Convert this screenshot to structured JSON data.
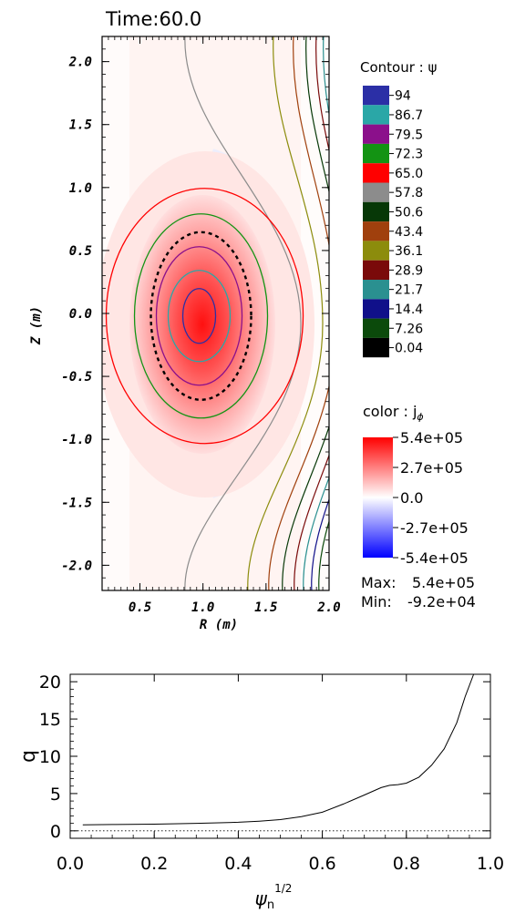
{
  "chart_data": [
    {
      "type": "heatmap",
      "title": "Time:60.0",
      "xlabel": "R (m)",
      "ylabel": "Z (m)",
      "xlim": [
        0.2,
        2.0
      ],
      "ylim": [
        -2.2,
        2.2
      ],
      "xticks": [
        "0.5",
        "1.0",
        "1.5",
        "2.0"
      ],
      "yticks": [
        "2.0",
        "1.5",
        "1.0",
        "0.5",
        "0.0",
        "-0.5",
        "-1.0",
        "-1.5",
        "-2.0"
      ],
      "magnetic_axis": {
        "R": 0.97,
        "Z": -0.02
      },
      "contour_legend": {
        "title": "Contour : ψ",
        "levels": [
          "94",
          "86.7",
          "79.5",
          "72.3",
          "65.0",
          "57.8",
          "50.6",
          "43.4",
          "36.1",
          "28.9",
          "21.7",
          "14.4",
          "7.26",
          "0.04"
        ],
        "colors": [
          "#2b2fa6",
          "#2aa7a7",
          "#8b108b",
          "#139313",
          "#ff0000",
          "#8c8c8c",
          "#073807",
          "#a0400d",
          "#8c8c0c",
          "#7a0a0a",
          "#2a9090",
          "#10108a",
          "#0b4a0b",
          "#000000"
        ]
      },
      "color_legend": {
        "title": "color : j",
        "title_subscript": "ϕ",
        "ticks": [
          "5.4e+05",
          "2.7e+05",
          "0.0",
          "-2.7e+05",
          "-5.4e+05"
        ],
        "max_label": "Max:",
        "max_value": "5.4e+05",
        "min_label": "Min:",
        "min_value": "-9.2e+04",
        "colors": {
          "high": "#ff0000",
          "mid": "#ffffff",
          "low": "#0000ff"
        }
      },
      "separatrix_style": "dashed",
      "grid": false
    },
    {
      "type": "line",
      "xlabel": "ψ",
      "xlabel_sub": "n",
      "xlabel_sup": "1/2",
      "ylabel": "q",
      "xlim": [
        0.0,
        1.0
      ],
      "ylim": [
        -1,
        21
      ],
      "xticks": [
        "0.0",
        "0.2",
        "0.4",
        "0.6",
        "0.8",
        "1.0"
      ],
      "yticks": [
        "0",
        "5",
        "10",
        "15",
        "20"
      ],
      "reference_line": {
        "y": 0,
        "style": "dotted"
      },
      "series": [
        {
          "x": [
            0.03,
            0.1,
            0.2,
            0.3,
            0.4,
            0.45,
            0.5,
            0.55,
            0.6,
            0.65,
            0.7,
            0.74,
            0.76,
            0.78,
            0.8,
            0.83,
            0.86,
            0.89,
            0.92,
            0.94,
            0.96
          ],
          "y": [
            0.8,
            0.85,
            0.9,
            1.0,
            1.15,
            1.3,
            1.5,
            1.9,
            2.5,
            3.6,
            4.8,
            5.8,
            6.1,
            6.2,
            6.4,
            7.2,
            8.8,
            11.0,
            14.5,
            18.0,
            21.0
          ]
        }
      ]
    }
  ]
}
